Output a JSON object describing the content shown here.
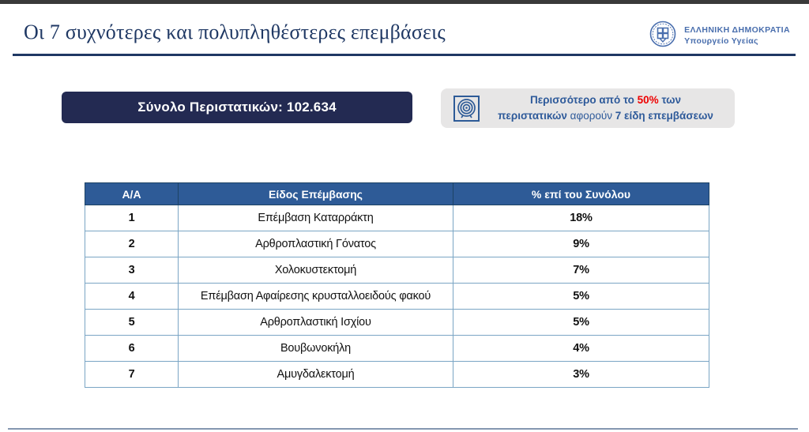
{
  "header": {
    "title": "Οι 7 συχνότερες και πολυπληθέστερες επεμβάσεις",
    "logo": {
      "org": "ΕΛΛΗΝΙΚΗ ΔΗΜΟΚΡΑΤΙΑ",
      "dept": "Υπουργείο Υγείας"
    }
  },
  "summary": {
    "total_label": "Σύνολο Περιστατικών: 102.634"
  },
  "callout": {
    "icon": "target-icon",
    "line1_part1": "Περισσότερο από το ",
    "line1_highlight": "50%",
    "line1_part2": " των",
    "line2_bold1": "περιστατικών",
    "line2_regular": " αφορούν ",
    "line2_bold2": "7 είδη επεμβάσεων"
  },
  "table": {
    "columns": [
      "Α/Α",
      "Είδος Επέμβασης",
      "% επί του Συνόλου"
    ],
    "rows": [
      {
        "index": "1",
        "name": "Επέμβαση Καταρράκτη",
        "percent": "18%"
      },
      {
        "index": "2",
        "name": "Αρθροπλαστική Γόνατος",
        "percent": "9%"
      },
      {
        "index": "3",
        "name": "Χολοκυστεκτομή",
        "percent": "7%"
      },
      {
        "index": "4",
        "name": "Επέμβαση Αφαίρεσης κρυσταλλοειδούς φακού",
        "percent": "5%"
      },
      {
        "index": "5",
        "name": "Αρθροπλαστική Ισχίου",
        "percent": "5%"
      },
      {
        "index": "6",
        "name": "Βουβωνοκήλη",
        "percent": "4%"
      },
      {
        "index": "7",
        "name": "Αμυγδαλεκτομή",
        "percent": "3%"
      }
    ]
  },
  "colors": {
    "navy": "#1f3864",
    "banner_bg": "#232a52",
    "table_header_bg": "#2e5b97",
    "table_border": "#7aa5c4",
    "header_divider": "#1d4365",
    "callout_bg": "#e7e6e6",
    "callout_text": "#2e5a9a",
    "highlight_red": "#ee0000",
    "logo_blue": "#4a6fae",
    "footer_line": "#8496b0",
    "top_edge": "#3a3a3a"
  }
}
